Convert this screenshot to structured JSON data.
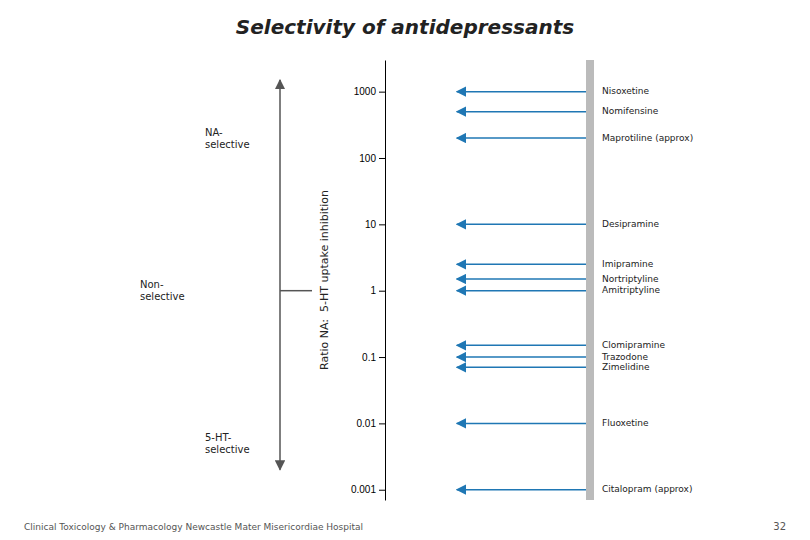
{
  "chart_data": {
    "type": "arrow",
    "title": "Selectivity of antidepressants",
    "ylabel": "Ratio NA:  5-HT uptake inhibition",
    "categories": [
      "Nisoxetine",
      "Nomifensine",
      "Maprotiline (approx)",
      "Desipramine",
      "Imipramine",
      "Nortriptyline",
      "Amitriptyline",
      "Clomipramine",
      "Trazodone",
      "Zimelidine",
      "Fluoxetine",
      "Citalopram (approx)"
    ],
    "values": [
      1000,
      500,
      200,
      10,
      2.5,
      1.5,
      1.0,
      0.15,
      0.1,
      0.07,
      0.01,
      0.001
    ],
    "log": "y",
    "ylim": [
      0.0007,
      3000
    ],
    "yticks": [
      0.001,
      0.01,
      0.1,
      1,
      10,
      100,
      1000
    ],
    "annotations": [
      {
        "text": "NA-\nselective",
        "y": 200
      },
      {
        "text": "Non-\nselective",
        "y": 1.0
      },
      {
        "text": "5-HT-\nselective",
        "y": 0.005
      }
    ],
    "arrow": {
      "y": [
        0.002,
        1500
      ]
    },
    "footer": "Clinical Toxicology & Pharmacology Newcastle Mater Misericordiae Hospital",
    "page": "32"
  }
}
